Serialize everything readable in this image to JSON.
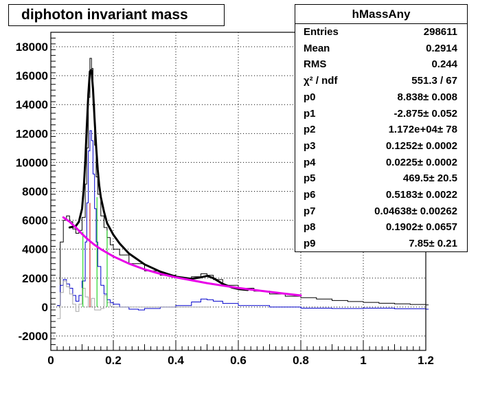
{
  "title": "diphoton invariant mass",
  "stats": {
    "name": "hMassAny",
    "rows": [
      {
        "key": "Entries",
        "value": "298611"
      },
      {
        "key": "Mean",
        "value": "0.2914"
      },
      {
        "key": "RMS",
        "value": "0.244"
      },
      {
        "key": "χ² / ndf",
        "value": "551.3 / 67"
      },
      {
        "key": "p0",
        "value": "8.838± 0.008"
      },
      {
        "key": "p1",
        "value": "-2.875± 0.052"
      },
      {
        "key": "p2",
        "value": "1.172e+04± 78"
      },
      {
        "key": "p3",
        "value": "0.1252± 0.0002"
      },
      {
        "key": "p4",
        "value": "0.0225± 0.0002"
      },
      {
        "key": "p5",
        "value": "469.5± 20.5"
      },
      {
        "key": "p6",
        "value": "0.5183± 0.0022"
      },
      {
        "key": "p7",
        "value": "0.04638± 0.00262"
      },
      {
        "key": "p8",
        "value": "0.1902± 0.0657"
      },
      {
        "key": "p9",
        "value": "7.85± 0.21"
      }
    ]
  },
  "chart_data": {
    "type": "line",
    "title": "diphoton invariant mass",
    "xlabel": "",
    "ylabel": "",
    "xlim": [
      0,
      1.2
    ],
    "ylim": [
      -3000,
      19000
    ],
    "grid": true,
    "xticks": [
      {
        "value": 0,
        "label": "0"
      },
      {
        "value": 0.2,
        "label": "0.2"
      },
      {
        "value": 0.4,
        "label": "0.4"
      },
      {
        "value": 0.6,
        "label": "0.6"
      },
      {
        "value": 0.8,
        "label": "0.8"
      },
      {
        "value": 1.0,
        "label": "1"
      },
      {
        "value": 1.2,
        "label": "1.2"
      }
    ],
    "yticks": [
      {
        "value": -2000,
        "label": "-2000"
      },
      {
        "value": 0,
        "label": "0"
      },
      {
        "value": 2000,
        "label": "2000"
      },
      {
        "value": 4000,
        "label": "4000"
      },
      {
        "value": 6000,
        "label": "6000"
      },
      {
        "value": 8000,
        "label": "8000"
      },
      {
        "value": 10000,
        "label": "10000"
      },
      {
        "value": 12000,
        "label": "12000"
      },
      {
        "value": 14000,
        "label": "14000"
      },
      {
        "value": 16000,
        "label": "16000"
      },
      {
        "value": 18000,
        "label": "18000"
      }
    ],
    "series": [
      {
        "type": "histogram",
        "color": "#000000",
        "x": [
          0.02,
          0.03,
          0.04,
          0.05,
          0.06,
          0.07,
          0.08,
          0.09,
          0.1,
          0.11,
          0.115,
          0.12,
          0.125,
          0.13,
          0.135,
          0.14,
          0.145,
          0.15,
          0.16,
          0.17,
          0.18,
          0.19,
          0.2,
          0.22,
          0.25,
          0.3,
          0.35,
          0.4,
          0.45,
          0.48,
          0.5,
          0.52,
          0.55,
          0.6,
          0.65,
          0.7,
          0.75,
          0.8,
          0.85,
          0.9,
          0.95,
          1.0,
          1.05,
          1.1,
          1.15,
          1.2
        ],
        "y": [
          100,
          4500,
          6000,
          6300,
          5900,
          5400,
          5100,
          5300,
          6200,
          8500,
          11000,
          14500,
          17200,
          16500,
          14000,
          11200,
          9000,
          7800,
          6300,
          5500,
          4800,
          4300,
          4000,
          3600,
          3000,
          2500,
          2200,
          2000,
          2100,
          2300,
          2200,
          1900,
          1500,
          1300,
          1100,
          900,
          750,
          650,
          550,
          450,
          380,
          320,
          260,
          220,
          180,
          150
        ]
      },
      {
        "type": "histogram",
        "color": "#0000cc",
        "x": [
          0.02,
          0.03,
          0.04,
          0.05,
          0.06,
          0.07,
          0.08,
          0.09,
          0.1,
          0.11,
          0.115,
          0.12,
          0.125,
          0.13,
          0.135,
          0.14,
          0.145,
          0.15,
          0.16,
          0.17,
          0.18,
          0.19,
          0.2,
          0.22,
          0.25,
          0.28,
          0.3,
          0.35,
          0.4,
          0.45,
          0.48,
          0.5,
          0.52,
          0.55,
          0.6,
          0.7,
          0.8,
          0.9,
          1.0,
          1.1,
          1.2
        ],
        "y": [
          100,
          1500,
          1900,
          1600,
          1300,
          800,
          400,
          800,
          1800,
          4500,
          7200,
          10800,
          12200,
          11500,
          9200,
          6800,
          4500,
          2800,
          1500,
          900,
          500,
          300,
          200,
          0,
          -150,
          -200,
          -100,
          0,
          100,
          350,
          550,
          500,
          400,
          250,
          100,
          0,
          -80,
          -100,
          -80,
          -120,
          -150
        ]
      },
      {
        "type": "histogram",
        "color": "#a8a8a8",
        "x": [
          0.02,
          0.03,
          0.04,
          0.05,
          0.06,
          0.07,
          0.08,
          0.09,
          0.1,
          0.11,
          0.12,
          0.13,
          0.14,
          0.15,
          0.16,
          0.17,
          0.18,
          0.19,
          0.2,
          0.25,
          0.3,
          0.4,
          0.5
        ],
        "y": [
          -800,
          1000,
          1800,
          1400,
          900,
          200,
          -300,
          200,
          1300,
          700,
          0,
          600,
          -200,
          -200,
          -100,
          800,
          300,
          50,
          0,
          0,
          0,
          0,
          0
        ]
      },
      {
        "type": "vline",
        "color": "#00cc00",
        "x": [
          0.1027,
          0.1477
        ],
        "y_top": [
          5200,
          7600
        ]
      },
      {
        "type": "vline",
        "color": "#00cc00",
        "x": [
          0.1802
        ],
        "y_top": [
          5300
        ]
      },
      {
        "type": "vline",
        "color": "#cc0000",
        "x": [
          0.1252
        ],
        "y_top": [
          7200
        ]
      },
      {
        "type": "fit",
        "name": "total fit",
        "color": "#000000",
        "x": [
          0.06,
          0.08,
          0.09,
          0.1,
          0.105,
          0.11,
          0.115,
          0.12,
          0.125,
          0.13,
          0.135,
          0.14,
          0.145,
          0.15,
          0.155,
          0.16,
          0.17,
          0.18,
          0.2,
          0.22,
          0.25,
          0.3,
          0.35,
          0.4,
          0.45,
          0.48,
          0.5,
          0.52,
          0.55,
          0.58,
          0.6,
          0.62,
          0.63
        ],
        "y": [
          5500,
          5600,
          5900,
          6800,
          8100,
          10000,
          12400,
          14700,
          16300,
          16400,
          15100,
          13000,
          11100,
          9500,
          8400,
          7600,
          6600,
          5800,
          5000,
          4400,
          3700,
          2950,
          2450,
          2100,
          1950,
          2050,
          2150,
          2000,
          1600,
          1350,
          1250,
          1200,
          1180
        ]
      },
      {
        "type": "fit",
        "name": "background fit",
        "color": "#e800e8",
        "x": [
          0.04,
          0.06,
          0.08,
          0.1,
          0.12,
          0.14,
          0.16,
          0.18,
          0.2,
          0.25,
          0.3,
          0.35,
          0.4,
          0.45,
          0.5,
          0.55,
          0.6,
          0.65,
          0.7,
          0.75,
          0.8
        ],
        "y": [
          6200,
          5900,
          5500,
          5050,
          4650,
          4300,
          4000,
          3750,
          3500,
          3000,
          2600,
          2300,
          2050,
          1850,
          1650,
          1480,
          1320,
          1180,
          1050,
          920,
          800
        ]
      }
    ]
  }
}
